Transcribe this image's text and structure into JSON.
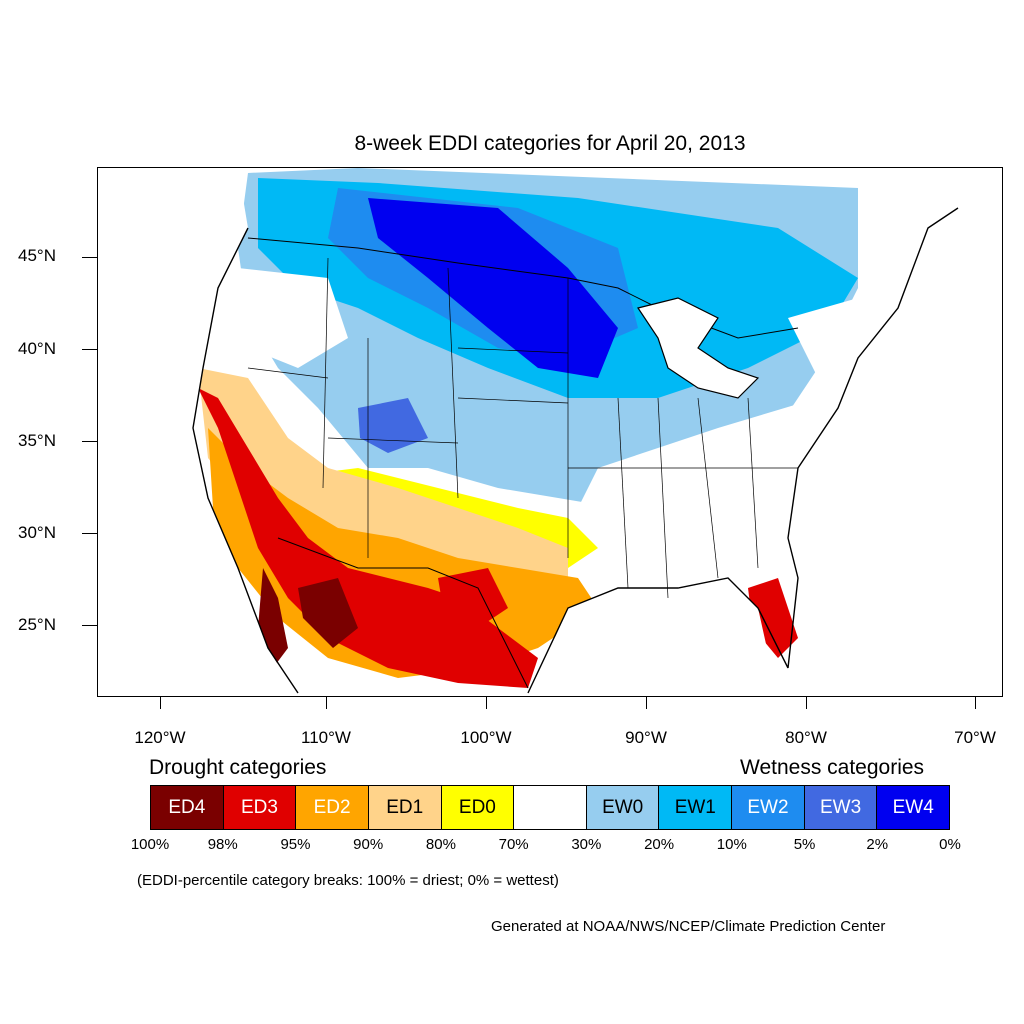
{
  "title": "8-week EDDI categories for April 20, 2013",
  "lat_labels": [
    "45°N",
    "40°N",
    "35°N",
    "30°N",
    "25°N"
  ],
  "lon_labels": [
    "120°W",
    "110°W",
    "100°W",
    "90°W",
    "80°W",
    "70°W"
  ],
  "legend": {
    "drought_title": "Drought categories",
    "wetness_title": "Wetness categories",
    "categories": [
      {
        "label": "ED4",
        "color": "#7a0000",
        "text_color": "#ffffff"
      },
      {
        "label": "ED3",
        "color": "#e00000",
        "text_color": "#ffffff"
      },
      {
        "label": "ED2",
        "color": "#ffa500",
        "text_color": "#ffffff"
      },
      {
        "label": "ED1",
        "color": "#ffd38a",
        "text_color": "#000000"
      },
      {
        "label": "ED0",
        "color": "#ffff00",
        "text_color": "#000000"
      },
      {
        "label": "",
        "color": "#ffffff",
        "text_color": "#000000"
      },
      {
        "label": "EW0",
        "color": "#96cdef",
        "text_color": "#000000"
      },
      {
        "label": "EW1",
        "color": "#00b9f5",
        "text_color": "#000000"
      },
      {
        "label": "EW2",
        "color": "#1e8cf0",
        "text_color": "#ffffff"
      },
      {
        "label": "EW3",
        "color": "#4169e1",
        "text_color": "#ffffff"
      },
      {
        "label": "EW4",
        "color": "#0000f0",
        "text_color": "#ffffff"
      }
    ],
    "breaks": [
      "100%",
      "98%",
      "95%",
      "90%",
      "80%",
      "70%",
      "30%",
      "20%",
      "10%",
      "5%",
      "2%",
      "0%"
    ]
  },
  "note": "(EDDI-percentile category breaks: 100% = driest; 0% = wettest)",
  "credit": "Generated at NOAA/NWS/NCEP/Climate Prediction Center"
}
